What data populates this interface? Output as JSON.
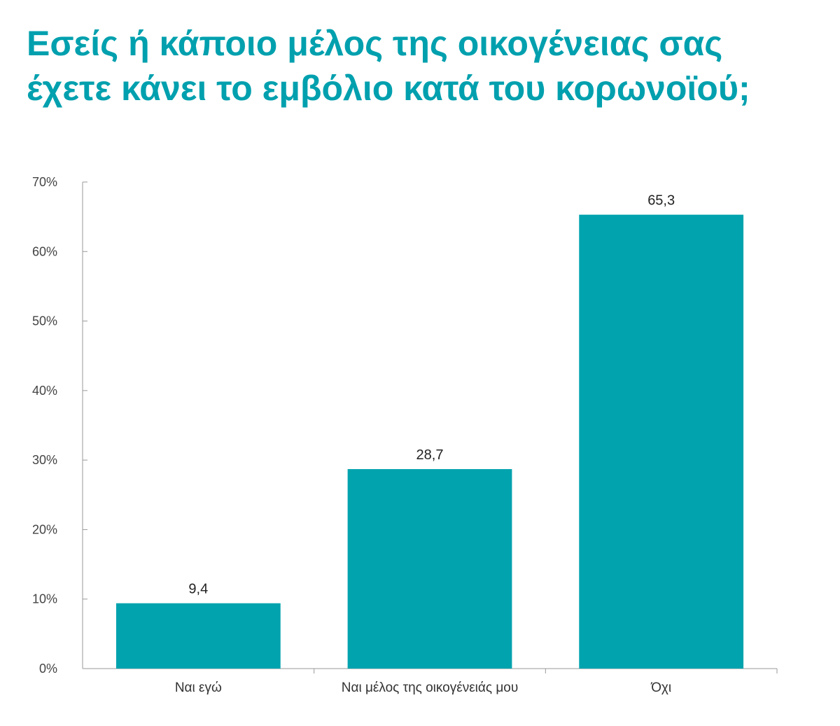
{
  "chart_data": {
    "type": "bar",
    "title_lines": [
      "Εσείς ή κάποιο μέλος της οικογένειας σας",
      "έχετε κάνει το εμβόλιο κατά του κορωνοϊού;"
    ],
    "categories": [
      "Ναι εγώ",
      "Ναι μέλος της οικογένειάς μου",
      "Όχι"
    ],
    "values": [
      9.4,
      28.7,
      65.3
    ],
    "data_labels": [
      "9,4",
      "28,7",
      "65,3"
    ],
    "ylim": [
      0,
      70
    ],
    "yticks": [
      0,
      10,
      20,
      30,
      40,
      50,
      60,
      70
    ],
    "ytick_labels": [
      "0%",
      "10%",
      "20%",
      "30%",
      "40%",
      "50%",
      "60%",
      "70%"
    ],
    "grid": false,
    "legend": "none",
    "bar_color": "#00a3ae",
    "title_color": "#00a0ae",
    "axis_color": "#999999"
  }
}
